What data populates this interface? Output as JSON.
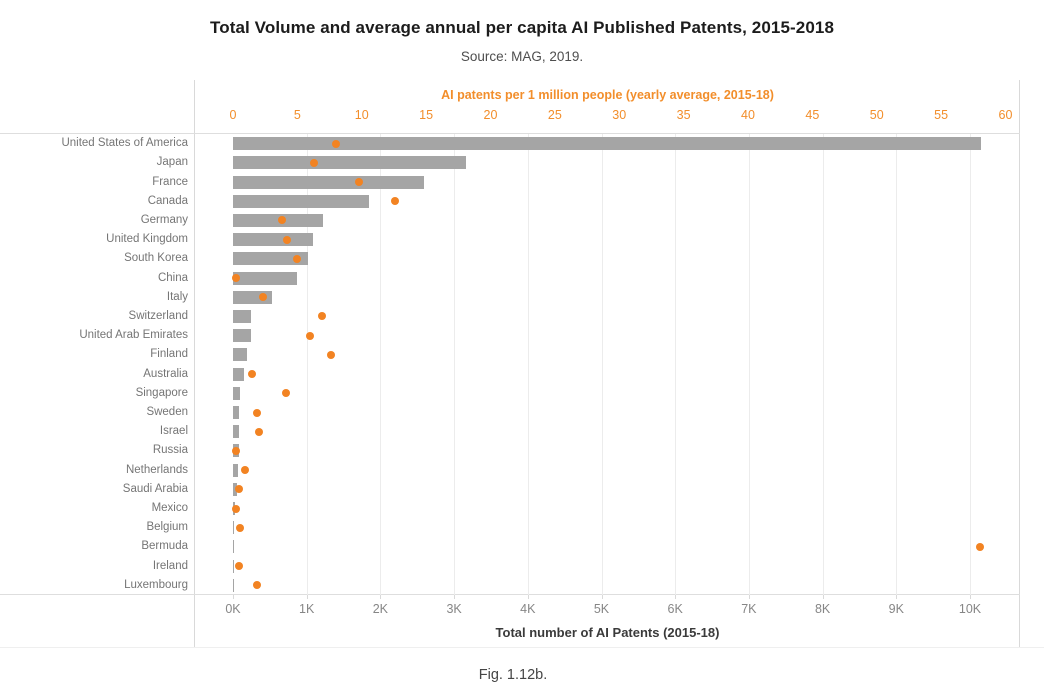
{
  "title": "Total Volume and average annual per capita AI Published Patents, 2015-2018",
  "subtitle": "Source: MAG, 2019.",
  "caption": "Fig. 1.12b.",
  "colors": {
    "bar": "#a5a5a5",
    "dot": "#f28322",
    "axis_orange": "#f28e2b",
    "category_label": "#757575",
    "bottom_tick": "#868686",
    "gridline": "#ececec"
  },
  "chart_data": {
    "type": "bar",
    "orientation": "horizontal",
    "grid": "vertical gridlines at bottom-axis ticks",
    "legend": "none",
    "categories": [
      "United States of America",
      "Japan",
      "France",
      "Canada",
      "Germany",
      "United Kingdom",
      "South Korea",
      "China",
      "Italy",
      "Switzerland",
      "United Arab Emirates",
      "Finland",
      "Australia",
      "Singapore",
      "Sweden",
      "Israel",
      "Russia",
      "Netherlands",
      "Saudi Arabia",
      "Mexico",
      "Belgium",
      "Bermuda",
      "Ireland",
      "Luxembourg"
    ],
    "series": [
      {
        "name": "Total number of AI Patents (2015-18)",
        "mark": "bar",
        "axis": "bottom",
        "values": [
          10150,
          3160,
          2590,
          1840,
          1220,
          1090,
          1020,
          865,
          530,
          245,
          245,
          190,
          145,
          92,
          88,
          80,
          76,
          65,
          57,
          30,
          20,
          15,
          10,
          8
        ]
      },
      {
        "name": "AI patents per 1 million people (yearly average, 2015-18)",
        "mark": "dot",
        "axis": "top",
        "values": [
          8.0,
          6.3,
          9.8,
          12.6,
          3.8,
          4.2,
          5.0,
          0.25,
          2.3,
          6.9,
          6.0,
          7.6,
          1.5,
          4.1,
          1.9,
          2.0,
          0.2,
          0.95,
          0.5,
          0.2,
          0.55,
          58.0,
          0.5,
          1.9
        ]
      }
    ],
    "top_axis": {
      "label": "AI patents per 1 million people (yearly average, 2015-18)",
      "ticks": [
        0,
        5,
        10,
        15,
        20,
        25,
        30,
        35,
        40,
        45,
        50,
        55,
        60
      ],
      "range": [
        0,
        61.2
      ]
    },
    "bottom_axis": {
      "label": "Total number of AI Patents (2015-18)",
      "tick_labels": [
        "0K",
        "1K",
        "2K",
        "3K",
        "4K",
        "5K",
        "6K",
        "7K",
        "8K",
        "9K",
        "10K"
      ],
      "tick_values": [
        0,
        1000,
        2000,
        3000,
        4000,
        5000,
        6000,
        7000,
        8000,
        9000,
        10000
      ],
      "range": [
        0,
        10680
      ]
    }
  }
}
